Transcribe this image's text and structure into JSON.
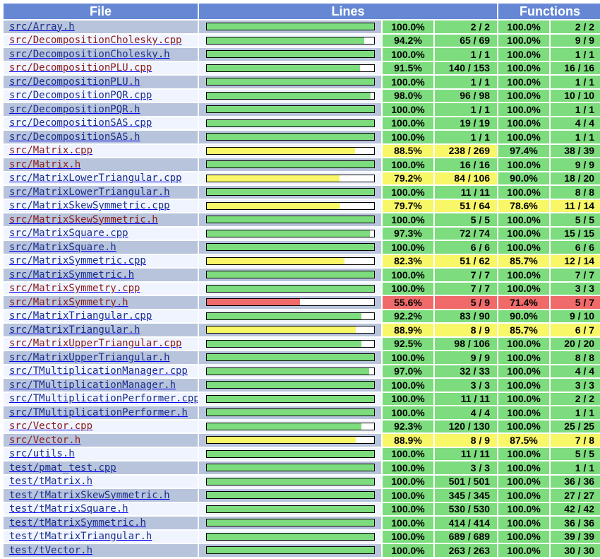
{
  "headers": {
    "file": "File",
    "lines": "Lines",
    "functions": "Functions"
  },
  "colors": {
    "header": "#6688d4",
    "high": "#7ddc7d",
    "medium": "#f7f768",
    "low": "#f06a6a"
  },
  "rows": [
    {
      "dir": "src/",
      "name": "Array.h",
      "visited": false,
      "line_pct": "100.0%",
      "line_count": "2 / 2",
      "func_pct": "100.0%",
      "func_count": "2 / 2",
      "line_fraction": 1.0,
      "line_level": "hi",
      "func_level": "hi"
    },
    {
      "dir": "src/",
      "name": "DecompositionCholesky.cpp",
      "visited": true,
      "line_pct": "94.2%",
      "line_count": "65 / 69",
      "func_pct": "100.0%",
      "func_count": "9 / 9",
      "line_fraction": 0.942,
      "line_level": "hi",
      "func_level": "hi"
    },
    {
      "dir": "src/",
      "name": "DecompositionCholesky.h",
      "visited": false,
      "line_pct": "100.0%",
      "line_count": "1 / 1",
      "func_pct": "100.0%",
      "func_count": "1 / 1",
      "line_fraction": 1.0,
      "line_level": "hi",
      "func_level": "hi"
    },
    {
      "dir": "src/",
      "name": "DecompositionPLU.cpp",
      "visited": true,
      "line_pct": "91.5%",
      "line_count": "140 / 153",
      "func_pct": "100.0%",
      "func_count": "16 / 16",
      "line_fraction": 0.915,
      "line_level": "hi",
      "func_level": "hi"
    },
    {
      "dir": "src/",
      "name": "DecompositionPLU.h",
      "visited": false,
      "line_pct": "100.0%",
      "line_count": "1 / 1",
      "func_pct": "100.0%",
      "func_count": "1 / 1",
      "line_fraction": 1.0,
      "line_level": "hi",
      "func_level": "hi"
    },
    {
      "dir": "src/",
      "name": "DecompositionPQR.cpp",
      "visited": false,
      "line_pct": "98.0%",
      "line_count": "96 / 98",
      "func_pct": "100.0%",
      "func_count": "10 / 10",
      "line_fraction": 0.98,
      "line_level": "hi",
      "func_level": "hi"
    },
    {
      "dir": "src/",
      "name": "DecompositionPQR.h",
      "visited": false,
      "line_pct": "100.0%",
      "line_count": "1 / 1",
      "func_pct": "100.0%",
      "func_count": "1 / 1",
      "line_fraction": 1.0,
      "line_level": "hi",
      "func_level": "hi"
    },
    {
      "dir": "src/",
      "name": "DecompositionSAS.cpp",
      "visited": false,
      "line_pct": "100.0%",
      "line_count": "19 / 19",
      "func_pct": "100.0%",
      "func_count": "4 / 4",
      "line_fraction": 1.0,
      "line_level": "hi",
      "func_level": "hi"
    },
    {
      "dir": "src/",
      "name": "DecompositionSAS.h",
      "visited": false,
      "line_pct": "100.0%",
      "line_count": "1 / 1",
      "func_pct": "100.0%",
      "func_count": "1 / 1",
      "line_fraction": 1.0,
      "line_level": "hi",
      "func_level": "hi"
    },
    {
      "dir": "src/",
      "name": "Matrix.cpp",
      "visited": true,
      "line_pct": "88.5%",
      "line_count": "238 / 269",
      "func_pct": "97.4%",
      "func_count": "38 / 39",
      "line_fraction": 0.885,
      "line_level": "med",
      "func_level": "hi"
    },
    {
      "dir": "src/",
      "name": "Matrix.h",
      "visited": true,
      "line_pct": "100.0%",
      "line_count": "16 / 16",
      "func_pct": "100.0%",
      "func_count": "9 / 9",
      "line_fraction": 1.0,
      "line_level": "hi",
      "func_level": "hi"
    },
    {
      "dir": "src/",
      "name": "MatrixLowerTriangular.cpp",
      "visited": false,
      "line_pct": "79.2%",
      "line_count": "84 / 106",
      "func_pct": "90.0%",
      "func_count": "18 / 20",
      "line_fraction": 0.792,
      "line_level": "med",
      "func_level": "hi"
    },
    {
      "dir": "src/",
      "name": "MatrixLowerTriangular.h",
      "visited": false,
      "line_pct": "100.0%",
      "line_count": "11 / 11",
      "func_pct": "100.0%",
      "func_count": "8 / 8",
      "line_fraction": 1.0,
      "line_level": "hi",
      "func_level": "hi"
    },
    {
      "dir": "src/",
      "name": "MatrixSkewSymmetric.cpp",
      "visited": false,
      "line_pct": "79.7%",
      "line_count": "51 / 64",
      "func_pct": "78.6%",
      "func_count": "11 / 14",
      "line_fraction": 0.797,
      "line_level": "med",
      "func_level": "med"
    },
    {
      "dir": "src/",
      "name": "MatrixSkewSymmetric.h",
      "visited": true,
      "line_pct": "100.0%",
      "line_count": "5 / 5",
      "func_pct": "100.0%",
      "func_count": "5 / 5",
      "line_fraction": 1.0,
      "line_level": "hi",
      "func_level": "hi"
    },
    {
      "dir": "src/",
      "name": "MatrixSquare.cpp",
      "visited": false,
      "line_pct": "97.3%",
      "line_count": "72 / 74",
      "func_pct": "100.0%",
      "func_count": "15 / 15",
      "line_fraction": 0.973,
      "line_level": "hi",
      "func_level": "hi"
    },
    {
      "dir": "src/",
      "name": "MatrixSquare.h",
      "visited": false,
      "line_pct": "100.0%",
      "line_count": "6 / 6",
      "func_pct": "100.0%",
      "func_count": "6 / 6",
      "line_fraction": 1.0,
      "line_level": "hi",
      "func_level": "hi"
    },
    {
      "dir": "src/",
      "name": "MatrixSymmetric.cpp",
      "visited": false,
      "line_pct": "82.3%",
      "line_count": "51 / 62",
      "func_pct": "85.7%",
      "func_count": "12 / 14",
      "line_fraction": 0.823,
      "line_level": "med",
      "func_level": "med"
    },
    {
      "dir": "src/",
      "name": "MatrixSymmetric.h",
      "visited": false,
      "line_pct": "100.0%",
      "line_count": "7 / 7",
      "func_pct": "100.0%",
      "func_count": "7 / 7",
      "line_fraction": 1.0,
      "line_level": "hi",
      "func_level": "hi"
    },
    {
      "dir": "src/",
      "name": "MatrixSymmetry.cpp",
      "visited": true,
      "line_pct": "100.0%",
      "line_count": "7 / 7",
      "func_pct": "100.0%",
      "func_count": "3 / 3",
      "line_fraction": 1.0,
      "line_level": "hi",
      "func_level": "hi"
    },
    {
      "dir": "src/",
      "name": "MatrixSymmetry.h",
      "visited": true,
      "line_pct": "55.6%",
      "line_count": "5 / 9",
      "func_pct": "71.4%",
      "func_count": "5 / 7",
      "line_fraction": 0.556,
      "line_level": "lo",
      "func_level": "lo"
    },
    {
      "dir": "src/",
      "name": "MatrixTriangular.cpp",
      "visited": false,
      "line_pct": "92.2%",
      "line_count": "83 / 90",
      "func_pct": "90.0%",
      "func_count": "9 / 10",
      "line_fraction": 0.922,
      "line_level": "hi",
      "func_level": "hi"
    },
    {
      "dir": "src/",
      "name": "MatrixTriangular.h",
      "visited": false,
      "line_pct": "88.9%",
      "line_count": "8 / 9",
      "func_pct": "85.7%",
      "func_count": "6 / 7",
      "line_fraction": 0.889,
      "line_level": "med",
      "func_level": "med"
    },
    {
      "dir": "src/",
      "name": "MatrixUpperTriangular.cpp",
      "visited": true,
      "line_pct": "92.5%",
      "line_count": "98 / 106",
      "func_pct": "100.0%",
      "func_count": "20 / 20",
      "line_fraction": 0.925,
      "line_level": "hi",
      "func_level": "hi"
    },
    {
      "dir": "src/",
      "name": "MatrixUpperTriangular.h",
      "visited": false,
      "line_pct": "100.0%",
      "line_count": "9 / 9",
      "func_pct": "100.0%",
      "func_count": "8 / 8",
      "line_fraction": 1.0,
      "line_level": "hi",
      "func_level": "hi"
    },
    {
      "dir": "src/",
      "name": "TMultiplicationManager.cpp",
      "visited": false,
      "line_pct": "97.0%",
      "line_count": "32 / 33",
      "func_pct": "100.0%",
      "func_count": "4 / 4",
      "line_fraction": 0.97,
      "line_level": "hi",
      "func_level": "hi"
    },
    {
      "dir": "src/",
      "name": "TMultiplicationManager.h",
      "visited": false,
      "line_pct": "100.0%",
      "line_count": "3 / 3",
      "func_pct": "100.0%",
      "func_count": "3 / 3",
      "line_fraction": 1.0,
      "line_level": "hi",
      "func_level": "hi"
    },
    {
      "dir": "src/",
      "name": "TMultiplicationPerformer.cpp",
      "visited": false,
      "line_pct": "100.0%",
      "line_count": "11 / 11",
      "func_pct": "100.0%",
      "func_count": "2 / 2",
      "line_fraction": 1.0,
      "line_level": "hi",
      "func_level": "hi"
    },
    {
      "dir": "src/",
      "name": "TMultiplicationPerformer.h",
      "visited": false,
      "line_pct": "100.0%",
      "line_count": "4 / 4",
      "func_pct": "100.0%",
      "func_count": "1 / 1",
      "line_fraction": 1.0,
      "line_level": "hi",
      "func_level": "hi"
    },
    {
      "dir": "src/",
      "name": "Vector.cpp",
      "visited": true,
      "line_pct": "92.3%",
      "line_count": "120 / 130",
      "func_pct": "100.0%",
      "func_count": "25 / 25",
      "line_fraction": 0.923,
      "line_level": "hi",
      "func_level": "hi"
    },
    {
      "dir": "src/",
      "name": "Vector.h",
      "visited": true,
      "line_pct": "88.9%",
      "line_count": "8 / 9",
      "func_pct": "87.5%",
      "func_count": "7 / 8",
      "line_fraction": 0.889,
      "line_level": "med",
      "func_level": "med"
    },
    {
      "dir": "src/",
      "name": "utils.h",
      "visited": false,
      "line_pct": "100.0%",
      "line_count": "11 / 11",
      "func_pct": "100.0%",
      "func_count": "5 / 5",
      "line_fraction": 1.0,
      "line_level": "hi",
      "func_level": "hi"
    },
    {
      "dir": "test/",
      "name": "pmat_test.cpp",
      "visited": false,
      "line_pct": "100.0%",
      "line_count": "3 / 3",
      "func_pct": "100.0%",
      "func_count": "1 / 1",
      "line_fraction": 1.0,
      "line_level": "hi",
      "func_level": "hi"
    },
    {
      "dir": "test/",
      "name": "tMatrix.h",
      "visited": false,
      "line_pct": "100.0%",
      "line_count": "501 / 501",
      "func_pct": "100.0%",
      "func_count": "36 / 36",
      "line_fraction": 1.0,
      "line_level": "hi",
      "func_level": "hi"
    },
    {
      "dir": "test/",
      "name": "tMatrixSkewSymmetric.h",
      "visited": false,
      "line_pct": "100.0%",
      "line_count": "345 / 345",
      "func_pct": "100.0%",
      "func_count": "27 / 27",
      "line_fraction": 1.0,
      "line_level": "hi",
      "func_level": "hi"
    },
    {
      "dir": "test/",
      "name": "tMatrixSquare.h",
      "visited": false,
      "line_pct": "100.0%",
      "line_count": "530 / 530",
      "func_pct": "100.0%",
      "func_count": "42 / 42",
      "line_fraction": 1.0,
      "line_level": "hi",
      "func_level": "hi"
    },
    {
      "dir": "test/",
      "name": "tMatrixSymmetric.h",
      "visited": false,
      "line_pct": "100.0%",
      "line_count": "414 / 414",
      "func_pct": "100.0%",
      "func_count": "36 / 36",
      "line_fraction": 1.0,
      "line_level": "hi",
      "func_level": "hi"
    },
    {
      "dir": "test/",
      "name": "tMatrixTriangular.h",
      "visited": false,
      "line_pct": "100.0%",
      "line_count": "689 / 689",
      "func_pct": "100.0%",
      "func_count": "39 / 39",
      "line_fraction": 1.0,
      "line_level": "hi",
      "func_level": "hi"
    },
    {
      "dir": "test/",
      "name": "tVector.h",
      "visited": false,
      "line_pct": "100.0%",
      "line_count": "263 / 263",
      "func_pct": "100.0%",
      "func_count": "30 / 30",
      "line_fraction": 1.0,
      "line_level": "hi",
      "func_level": "hi"
    }
  ]
}
